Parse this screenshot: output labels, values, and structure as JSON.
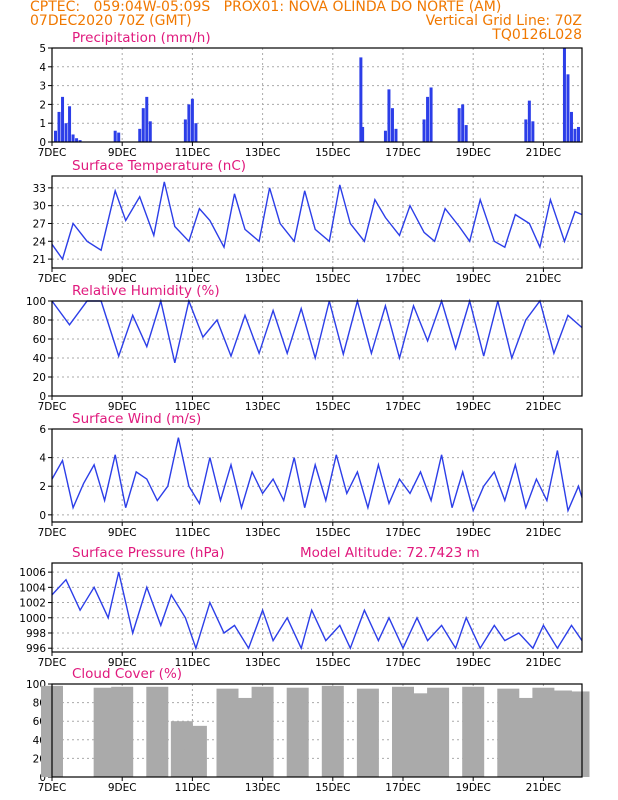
{
  "header": {
    "line1": "CPTEC:   059:04W-05:09S   PROX01: NOVA OLINDA DO NORTE (AM)",
    "line2_left": "07DEC2020 70Z (GMT)",
    "line2_right": "Vertical Grid Line: 70Z",
    "line3_right": "TQ0126L028"
  },
  "colors": {
    "header": "#f07800",
    "title": "#e0197d",
    "series": "#2c3ee8",
    "cloud": "#aaaaaa",
    "grid": "#aaaaaa"
  },
  "x_axis": {
    "labels": [
      "7DEC",
      "9DEC",
      "11DEC",
      "13DEC",
      "15DEC",
      "17DEC",
      "19DEC",
      "21DEC"
    ],
    "range_days": [
      7,
      22.1
    ]
  },
  "chart_data": [
    {
      "type": "bar",
      "title": "Precipitation (mm/h)",
      "ylim": [
        0,
        5
      ],
      "yticks": [
        "0",
        "1",
        "2",
        "3",
        "4",
        "5"
      ],
      "x": [
        7.1,
        7.2,
        7.3,
        7.4,
        7.5,
        7.6,
        7.7,
        7.8,
        8.8,
        8.9,
        9.5,
        9.6,
        9.7,
        9.8,
        10.8,
        10.9,
        11.0,
        11.1,
        15.8,
        15.85,
        16.5,
        16.6,
        16.7,
        16.8,
        17.6,
        17.7,
        17.8,
        18.6,
        18.7,
        18.8,
        20.5,
        20.6,
        20.7,
        21.6,
        21.7,
        21.8,
        21.9,
        22.0
      ],
      "values": [
        0.6,
        1.6,
        2.4,
        1.0,
        1.9,
        0.4,
        0.2,
        0.1,
        0.6,
        0.5,
        0.7,
        1.8,
        2.4,
        1.1,
        1.2,
        2.0,
        2.3,
        1.0,
        4.5,
        0.8,
        0.6,
        2.8,
        1.8,
        0.7,
        1.2,
        2.4,
        2.9,
        1.8,
        2.0,
        0.9,
        1.2,
        2.2,
        1.1,
        5.0,
        3.6,
        1.6,
        0.7,
        0.8
      ]
    },
    {
      "type": "line",
      "title": "Surface Temperature (nC)",
      "ylim": [
        19.5,
        35
      ],
      "yticks": [
        "21",
        "24",
        "27",
        "30",
        "33"
      ],
      "x": [
        7.0,
        7.3,
        7.6,
        8.0,
        8.4,
        8.8,
        9.1,
        9.5,
        9.9,
        10.2,
        10.5,
        10.9,
        11.2,
        11.5,
        11.9,
        12.2,
        12.5,
        12.9,
        13.2,
        13.5,
        13.9,
        14.2,
        14.5,
        14.9,
        15.2,
        15.5,
        15.9,
        16.2,
        16.5,
        16.9,
        17.2,
        17.6,
        17.9,
        18.2,
        18.6,
        18.9,
        19.2,
        19.6,
        19.9,
        20.2,
        20.6,
        20.9,
        21.2,
        21.6,
        21.9,
        22.1
      ],
      "values": [
        23.5,
        21.0,
        27.0,
        24.0,
        22.5,
        32.5,
        27.5,
        31.5,
        25.0,
        34.0,
        26.5,
        24.0,
        29.5,
        27.5,
        23.0,
        32.0,
        26.0,
        24.0,
        33.0,
        27.0,
        24.0,
        32.5,
        26.0,
        24.0,
        33.5,
        27.0,
        24.0,
        31.0,
        28.0,
        25.0,
        30.0,
        25.5,
        24.0,
        29.5,
        26.5,
        24.0,
        31.0,
        24.0,
        23.0,
        28.5,
        27.0,
        23.0,
        31.0,
        24.0,
        29.0,
        28.5
      ]
    },
    {
      "type": "line",
      "title": "Relative Humidity (%)",
      "ylim": [
        0,
        100
      ],
      "yticks": [
        "0",
        "20",
        "40",
        "60",
        "80",
        "100"
      ],
      "x": [
        7.0,
        7.5,
        8.0,
        8.4,
        8.9,
        9.3,
        9.7,
        10.1,
        10.5,
        10.9,
        11.3,
        11.7,
        12.1,
        12.5,
        12.9,
        13.3,
        13.7,
        14.1,
        14.5,
        14.9,
        15.3,
        15.7,
        16.1,
        16.5,
        16.9,
        17.3,
        17.7,
        18.1,
        18.5,
        18.9,
        19.3,
        19.7,
        20.1,
        20.5,
        20.9,
        21.3,
        21.7,
        22.1
      ],
      "values": [
        100,
        75,
        100,
        100,
        42,
        85,
        52,
        100,
        35,
        100,
        62,
        80,
        42,
        85,
        45,
        90,
        45,
        92,
        40,
        100,
        44,
        100,
        45,
        95,
        40,
        95,
        58,
        100,
        50,
        100,
        42,
        100,
        40,
        80,
        100,
        45,
        85,
        72
      ]
    },
    {
      "type": "line",
      "title": "Surface Wind (m/s)",
      "ylim": [
        -0.5,
        6
      ],
      "yticks": [
        "0",
        "2",
        "4",
        "6"
      ],
      "x": [
        7.0,
        7.3,
        7.6,
        7.9,
        8.2,
        8.5,
        8.8,
        9.1,
        9.4,
        9.7,
        10.0,
        10.3,
        10.6,
        10.9,
        11.2,
        11.5,
        11.8,
        12.1,
        12.4,
        12.7,
        13.0,
        13.3,
        13.6,
        13.9,
        14.2,
        14.5,
        14.8,
        15.1,
        15.4,
        15.7,
        16.0,
        16.3,
        16.6,
        16.9,
        17.2,
        17.5,
        17.8,
        18.1,
        18.4,
        18.7,
        19.0,
        19.3,
        19.6,
        19.9,
        20.2,
        20.5,
        20.8,
        21.1,
        21.4,
        21.7,
        22.0,
        22.1
      ],
      "values": [
        2.5,
        3.8,
        0.5,
        2.2,
        3.5,
        1.0,
        4.2,
        0.5,
        3.0,
        2.5,
        1.0,
        2.0,
        5.4,
        2.0,
        0.8,
        4.0,
        1.0,
        3.5,
        0.5,
        3.0,
        1.5,
        2.5,
        1.0,
        4.0,
        0.5,
        3.5,
        1.0,
        4.2,
        1.5,
        3.0,
        0.5,
        3.5,
        0.8,
        2.5,
        1.5,
        3.0,
        1.0,
        4.2,
        0.5,
        3.0,
        0.3,
        2.0,
        3.0,
        1.0,
        3.5,
        0.5,
        2.5,
        1.0,
        4.5,
        0.3,
        2.0,
        1.2
      ]
    },
    {
      "type": "line",
      "title": "Surface Pressure (hPa)",
      "annotation": "Model Altitude: 72.7423 m",
      "ylim": [
        995.5,
        1007.2
      ],
      "yticks": [
        "996",
        "998",
        "1000",
        "1002",
        "1004",
        "1006"
      ],
      "x": [
        7.0,
        7.4,
        7.8,
        8.2,
        8.6,
        8.9,
        9.3,
        9.7,
        10.1,
        10.4,
        10.8,
        11.1,
        11.5,
        11.9,
        12.2,
        12.6,
        13.0,
        13.3,
        13.7,
        14.1,
        14.4,
        14.8,
        15.2,
        15.5,
        15.9,
        16.3,
        16.6,
        17.0,
        17.4,
        17.7,
        18.1,
        18.5,
        18.8,
        19.2,
        19.6,
        19.9,
        20.3,
        20.7,
        21.0,
        21.4,
        21.8,
        22.1
      ],
      "values": [
        1003,
        1005,
        1001,
        1004,
        1000,
        1006,
        998,
        1004,
        999,
        1003,
        1000,
        996,
        1002,
        998,
        999,
        996,
        1001,
        997,
        1000,
        996,
        1001,
        997,
        999,
        996,
        1001,
        997,
        1000,
        996,
        1000,
        997,
        999,
        996,
        1000,
        996,
        999,
        997,
        998,
        996,
        999,
        996,
        999,
        997
      ]
    },
    {
      "type": "bar",
      "title": "Cloud Cover (%)",
      "ylim": [
        0,
        100
      ],
      "yticks": [
        "0",
        "20",
        "40",
        "60",
        "80",
        "100"
      ],
      "x": [
        7.0,
        8.5,
        8.7,
        8.8,
        9.0,
        10.0,
        10.7,
        10.8,
        10.9,
        11.0,
        11.1,
        12.0,
        12.6,
        12.7,
        13.0,
        14.0,
        15.0,
        16.0,
        17.0,
        17.5,
        18.0,
        19.0,
        20.0,
        20.5,
        21.0,
        21.5,
        22.0
      ],
      "values": [
        98,
        96,
        70,
        5,
        97,
        97,
        60,
        20,
        10,
        30,
        55,
        95,
        85,
        8,
        97,
        96,
        98,
        95,
        97,
        90,
        96,
        97,
        95,
        85,
        96,
        93,
        92
      ]
    }
  ]
}
